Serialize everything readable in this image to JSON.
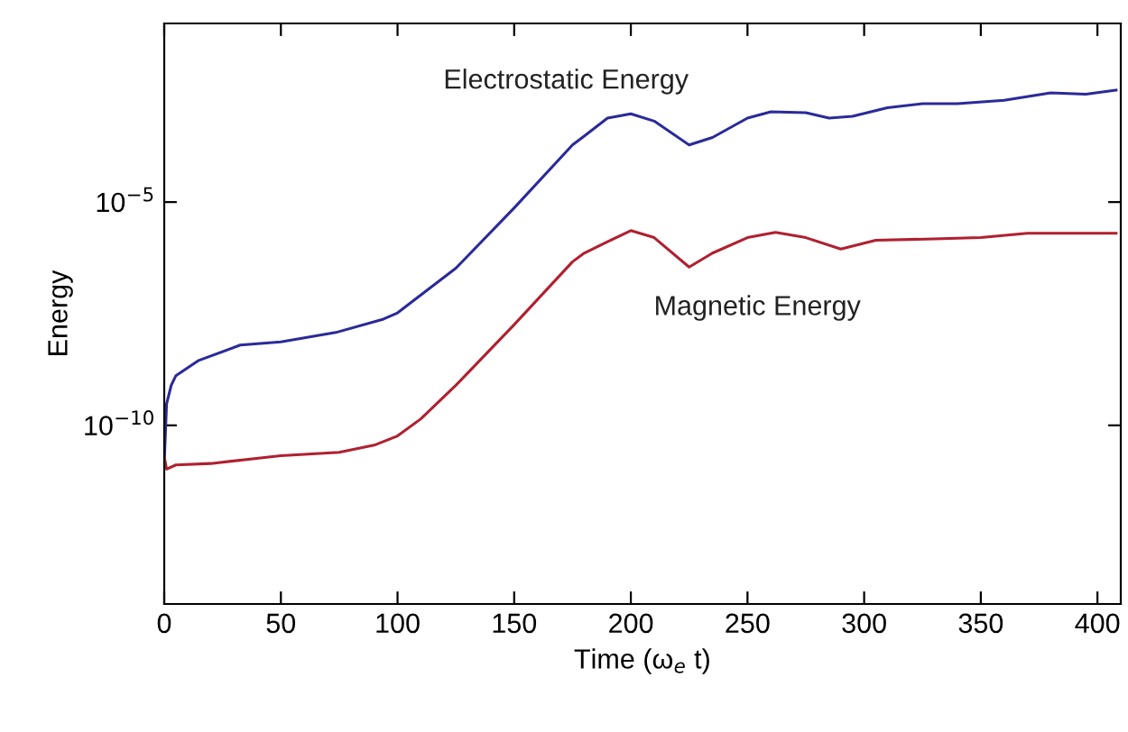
{
  "chart_data": {
    "type": "line",
    "xlabel": "Time (ω$_{e}$ t)",
    "ylabel": "Energy",
    "log": "y",
    "xlim": [
      0,
      410
    ],
    "ylim": [
      1e-14,
      0.1
    ],
    "xticks": [
      0,
      50,
      100,
      150,
      200,
      250,
      300,
      350,
      400
    ],
    "yticks": [
      {
        "value": 1e-10,
        "label": "10$^{−10}$"
      },
      {
        "value": 1e-05,
        "label": "10$^{−5}$"
      }
    ],
    "grid": false,
    "legend": false,
    "marker": "none",
    "line_style": "solid",
    "series": [
      {
        "name": "Electrostatic Energy",
        "color": "#2a2a9a",
        "x": [
          0,
          1,
          3,
          5,
          14.5,
          32.6,
          50,
          73.5,
          94,
          100,
          125,
          150,
          175,
          180,
          190,
          200,
          210,
          225,
          235,
          250,
          260,
          275,
          285,
          295,
          310,
          325,
          340,
          360,
          380,
          395,
          408
        ],
        "values": [
          1.4e-11,
          3e-10,
          7.9e-10,
          1.3e-09,
          2.8e-09,
          6.3e-09,
          7.4e-09,
          1.2e-08,
          2.4e-08,
          3.3e-08,
          3.3e-07,
          7.4e-06,
          0.00019,
          0.0003,
          0.00076,
          0.00095,
          0.00065,
          0.00019,
          0.00028,
          0.00076,
          0.00105,
          0.001,
          0.00076,
          0.00083,
          0.0013,
          0.0016,
          0.0016,
          0.0019,
          0.0028,
          0.0026,
          0.0032
        ]
      },
      {
        "name": "Magnetic Energy",
        "color": "#b02030",
        "x": [
          0,
          1,
          5,
          20,
          50,
          75,
          90,
          100,
          110,
          125,
          150,
          175,
          180,
          190,
          200,
          210,
          225,
          235,
          250,
          262,
          275,
          290,
          305,
          330,
          350,
          370,
          408
        ],
        "values": [
          2e-11,
          1.05e-11,
          1.3e-11,
          1.4e-11,
          2.1e-11,
          2.5e-11,
          3.6e-11,
          5.8e-11,
          1.4e-10,
          7.9e-10,
          1.8e-08,
          4.6e-07,
          7.2e-07,
          1.3e-06,
          2.3e-06,
          1.6e-06,
          3.5e-07,
          7.2e-07,
          1.6e-06,
          2.1e-06,
          1.6e-06,
          8.9e-07,
          1.4e-06,
          1.5e-06,
          1.6e-06,
          2e-06,
          2e-06
        ]
      }
    ]
  }
}
